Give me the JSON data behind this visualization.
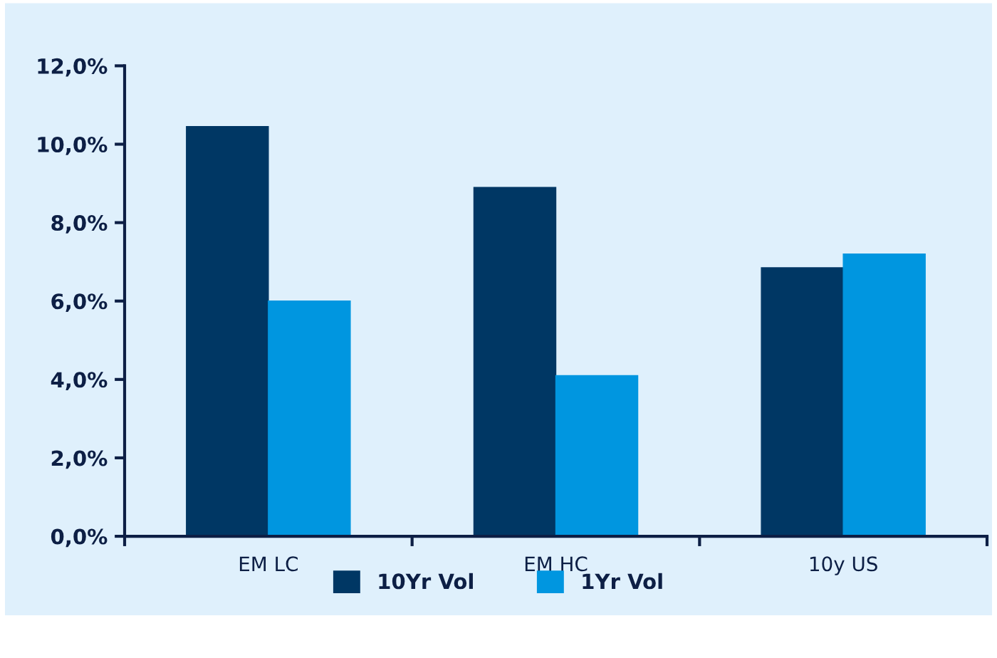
{
  "chart_data": {
    "type": "bar",
    "categories": [
      "EM LC",
      "EM HC",
      "10y US"
    ],
    "series": [
      {
        "name": "10Yr Vol",
        "color": "#003764",
        "values": [
          10.45,
          8.9,
          6.85
        ]
      },
      {
        "name": "1Yr Vol",
        "color": "#0096e0",
        "values": [
          6.0,
          4.1,
          7.2
        ]
      }
    ],
    "ylim": [
      0,
      12
    ],
    "yticks": [
      {
        "value": 0,
        "label": "0,0%"
      },
      {
        "value": 2,
        "label": "2,0%"
      },
      {
        "value": 4,
        "label": "4,0%"
      },
      {
        "value": 6,
        "label": "6,0%"
      },
      {
        "value": 8,
        "label": "8,0%"
      },
      {
        "value": 10,
        "label": "10,0%"
      },
      {
        "value": 12,
        "label": "12,0%"
      }
    ],
    "grid": false,
    "legend": "bottom"
  }
}
